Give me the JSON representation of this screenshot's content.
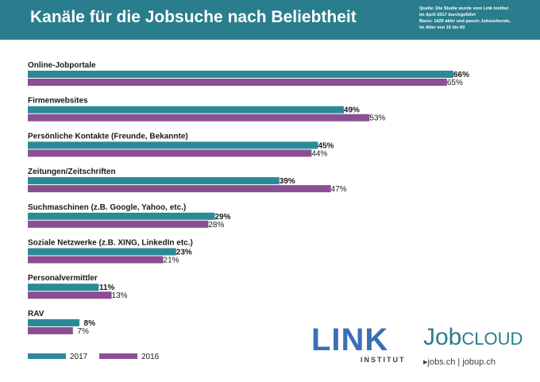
{
  "header": {
    "title": "Kanäle für die Jobsuche nach Beliebtheit",
    "source_lines": [
      "Quelle: Die Studie wurde vom Link Institut",
      "im April 2017 durchgeführt",
      "Basis: 1429 aktiv und passiv Jobsuchende,",
      "im Alter von 16 bis 60"
    ]
  },
  "colors": {
    "header_bg": "#2a7d8c",
    "series_2017": "#2a8a98",
    "series_2016": "#8a4f93"
  },
  "chart_data": {
    "type": "bar",
    "orientation": "horizontal",
    "categories": [
      "Online-Jobportale",
      "Firmenwebsites",
      "Persönliche Kontakte (Freunde, Bekannte)",
      "Zeitungen/Zeitschriften",
      "Suchmaschinen (z.B. Google, Yahoo, etc.)",
      "Soziale Netzwerke (z.B. XING, LinkedIn etc.)",
      "Personalvermittler",
      "RAV"
    ],
    "series": [
      {
        "name": "2017",
        "values": [
          66,
          49,
          45,
          39,
          29,
          23,
          11,
          8
        ],
        "labels": [
          "66%",
          "49%",
          "45%",
          "39%",
          "29%",
          "23%",
          "11%",
          "8%"
        ]
      },
      {
        "name": "2016",
        "values": [
          65,
          53,
          44,
          47,
          28,
          21,
          13,
          7
        ],
        "labels": [
          "65%",
          "53%",
          "44%",
          "47%",
          "28%",
          "21%",
          "13%",
          "7%"
        ]
      }
    ],
    "xlim": [
      0,
      100
    ],
    "grid": false,
    "legend": "bottom-left"
  },
  "logos": {
    "link": {
      "name": "LINK",
      "sub": "INSTITUT"
    },
    "jobcloud": {
      "job": "Job",
      "cloud": "CLOUD",
      "sub": "▸jobs.ch | jobup.ch"
    }
  }
}
